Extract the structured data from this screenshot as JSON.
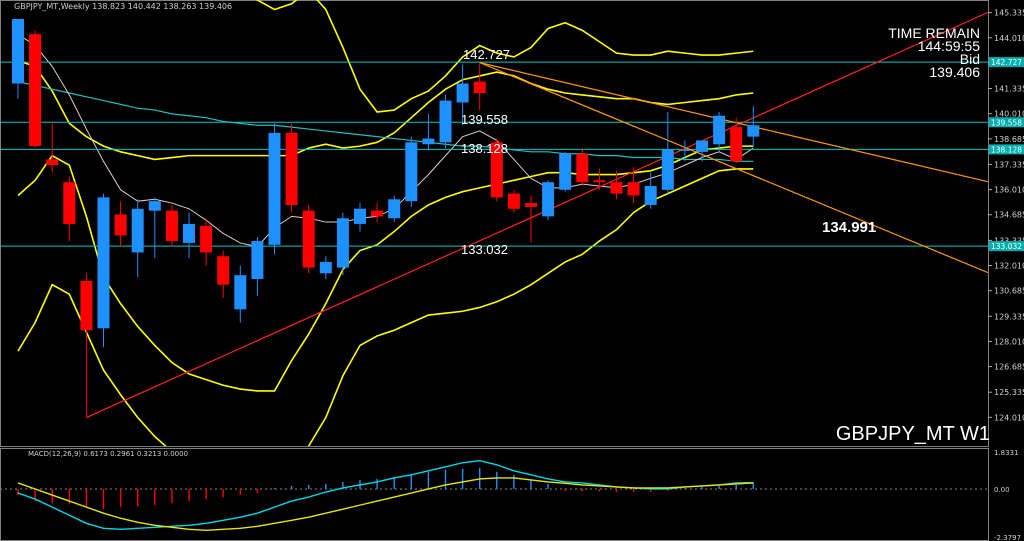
{
  "header": {
    "ohlc_text": "GBPJPY_MT,Weekly  138.823 140.442 138.263 139.406"
  },
  "time_remain": {
    "label": "TIME REMAIN",
    "value": "144:59:55",
    "bid_label": "Bid",
    "bid_value": "139.406"
  },
  "symbol_label": "GBPJPY_MT W1",
  "center_value": "134.991",
  "macd_header": "MACD(12,26,9) 0.6173 0.2961 0.3213 0.0000",
  "colors": {
    "bull": "#1e90ff",
    "bear": "#ff0000",
    "hline": "#00c8c8",
    "band": "#ffff00",
    "trend_up": "#ff2020",
    "trend_down": "#ff9900",
    "ma_white": "#e6c8c8",
    "macd_signal": "#00d8e8",
    "macd_main": "#e6e600",
    "tag_bg": "#00b0b0"
  },
  "chart_data": [
    {
      "type": "candlestick",
      "title": "GBPJPY_MT,Weekly",
      "ylim": [
        122.5,
        146.0
      ],
      "yticks": [
        "145.335",
        "144.010",
        "142.685",
        "141.335",
        "140.010",
        "138.685",
        "137.335",
        "136.010",
        "134.685",
        "133.335",
        "132.010",
        "130.685",
        "129.335",
        "128.010",
        "126.685",
        "125.335",
        "124.010"
      ],
      "candles": [
        {
          "o": 141.6,
          "h": 145.0,
          "l": 140.8,
          "c": 145.0
        },
        {
          "o": 144.2,
          "h": 144.4,
          "l": 138.2,
          "c": 138.3
        },
        {
          "o": 137.6,
          "h": 139.5,
          "l": 136.9,
          "c": 137.3
        },
        {
          "o": 136.4,
          "h": 136.7,
          "l": 133.3,
          "c": 134.2
        },
        {
          "o": 131.2,
          "h": 131.6,
          "l": 124.0,
          "c": 128.6
        },
        {
          "o": 128.7,
          "h": 135.8,
          "l": 127.7,
          "c": 135.6
        },
        {
          "o": 134.7,
          "h": 135.4,
          "l": 133.0,
          "c": 133.6
        },
        {
          "o": 132.7,
          "h": 135.5,
          "l": 131.4,
          "c": 135.0
        },
        {
          "o": 134.9,
          "h": 135.6,
          "l": 132.4,
          "c": 135.4
        },
        {
          "o": 134.9,
          "h": 135.2,
          "l": 133.0,
          "c": 133.3
        },
        {
          "o": 133.2,
          "h": 134.8,
          "l": 132.4,
          "c": 134.2
        },
        {
          "o": 134.1,
          "h": 134.4,
          "l": 132.0,
          "c": 132.7
        },
        {
          "o": 132.5,
          "h": 132.8,
          "l": 130.3,
          "c": 131.0
        },
        {
          "o": 129.7,
          "h": 132.0,
          "l": 129.0,
          "c": 131.5
        },
        {
          "o": 131.3,
          "h": 133.5,
          "l": 130.4,
          "c": 133.3
        },
        {
          "o": 133.1,
          "h": 139.5,
          "l": 132.6,
          "c": 139.0
        },
        {
          "o": 139.0,
          "h": 139.5,
          "l": 134.8,
          "c": 135.2
        },
        {
          "o": 134.9,
          "h": 135.2,
          "l": 131.6,
          "c": 131.9
        },
        {
          "o": 131.6,
          "h": 132.5,
          "l": 131.3,
          "c": 132.2
        },
        {
          "o": 131.9,
          "h": 134.8,
          "l": 131.5,
          "c": 134.5
        },
        {
          "o": 134.2,
          "h": 135.3,
          "l": 133.8,
          "c": 135.0
        },
        {
          "o": 134.9,
          "h": 135.3,
          "l": 134.3,
          "c": 134.6
        },
        {
          "o": 134.5,
          "h": 135.7,
          "l": 134.3,
          "c": 135.5
        },
        {
          "o": 135.4,
          "h": 138.8,
          "l": 135.1,
          "c": 138.5
        },
        {
          "o": 138.4,
          "h": 140.0,
          "l": 138.1,
          "c": 138.7
        },
        {
          "o": 138.5,
          "h": 141.0,
          "l": 138.2,
          "c": 140.7
        },
        {
          "o": 140.6,
          "h": 142.6,
          "l": 139.4,
          "c": 141.6
        },
        {
          "o": 141.7,
          "h": 142.7,
          "l": 140.2,
          "c": 141.1
        },
        {
          "o": 138.5,
          "h": 138.7,
          "l": 135.4,
          "c": 135.6
        },
        {
          "o": 135.8,
          "h": 136.0,
          "l": 134.8,
          "c": 135.0
        },
        {
          "o": 135.3,
          "h": 135.7,
          "l": 133.2,
          "c": 135.1
        },
        {
          "o": 134.6,
          "h": 136.5,
          "l": 134.4,
          "c": 136.4
        },
        {
          "o": 136.0,
          "h": 138.0,
          "l": 135.9,
          "c": 137.9
        },
        {
          "o": 137.9,
          "h": 138.2,
          "l": 136.2,
          "c": 136.4
        },
        {
          "o": 136.5,
          "h": 137.1,
          "l": 136.0,
          "c": 136.4
        },
        {
          "o": 136.4,
          "h": 137.0,
          "l": 135.5,
          "c": 135.8
        },
        {
          "o": 136.4,
          "h": 137.2,
          "l": 135.3,
          "c": 135.7
        },
        {
          "o": 135.2,
          "h": 136.9,
          "l": 135.0,
          "c": 136.2
        },
        {
          "o": 136.0,
          "h": 140.1,
          "l": 135.8,
          "c": 138.1
        },
        {
          "o": 138.1,
          "h": 138.6,
          "l": 137.5,
          "c": 138.1
        },
        {
          "o": 138.0,
          "h": 138.6,
          "l": 137.5,
          "c": 138.6
        },
        {
          "o": 138.4,
          "h": 140.1,
          "l": 138.0,
          "c": 139.9
        },
        {
          "o": 139.3,
          "h": 139.8,
          "l": 137.4,
          "c": 137.5
        },
        {
          "o": 138.8,
          "h": 140.4,
          "l": 138.3,
          "c": 139.4
        }
      ],
      "hlines": [
        {
          "value": 142.727,
          "label": "142.727"
        },
        {
          "value": 139.558,
          "label": "139.558"
        },
        {
          "value": 138.128,
          "label": "138.128"
        },
        {
          "value": 133.032,
          "label": "133.032"
        }
      ],
      "trendlines": [
        {
          "name": "support",
          "points": [
            [
              4,
              124.0
            ],
            [
              45,
              140.6
            ]
          ]
        },
        {
          "name": "resistance",
          "points": [
            [
              27,
              142.7
            ],
            [
              45,
              136.0
            ]
          ]
        },
        {
          "name": "resistance-2",
          "points": [
            [
              27,
              142.7
            ],
            [
              45,
              138.9
            ]
          ]
        }
      ],
      "bands": {
        "outer_upper": [
          168,
          163,
          157,
          153,
          150,
          149,
          149,
          149,
          149,
          148.5,
          148,
          147.5,
          147,
          146.5,
          146,
          145.5,
          145.8,
          146.5,
          145.5,
          143.5,
          141.3,
          140.1,
          140.2,
          140.8,
          141.2,
          142.0,
          143.0,
          143.6,
          143.2,
          143.0,
          143.5,
          144.5,
          144.8,
          144.4,
          143.8,
          143.2,
          143.1,
          143.1,
          143.3,
          143.2,
          143.1,
          143.1,
          143.2,
          143.3
        ],
        "inner_upper": [
          142.8,
          142.5,
          141.2,
          139.5,
          138.8,
          138.3,
          138.0,
          137.8,
          137.6,
          137.7,
          137.8,
          137.8,
          137.8,
          137.8,
          137.8,
          137.8,
          137.8,
          138.2,
          138.4,
          138.2,
          138.3,
          138.5,
          139.0,
          139.8,
          140.6,
          141.3,
          141.8,
          142.0,
          142.2,
          142.0,
          141.6,
          141.3,
          141.1,
          141.0,
          140.9,
          140.8,
          140.8,
          140.6,
          140.5,
          140.6,
          140.7,
          140.8,
          141.0,
          141.1
        ],
        "inner_lower": [
          135.7,
          136.5,
          137.8,
          137.3,
          134.6,
          131.4,
          130.0,
          128.8,
          127.8,
          126.9,
          126.3,
          126.0,
          125.7,
          125.5,
          125.4,
          125.4,
          127.0,
          128.4,
          130.0,
          131.8,
          132.8,
          133.1,
          133.8,
          134.6,
          135.2,
          135.6,
          135.9,
          136.1,
          136.3,
          136.5,
          136.7,
          136.9,
          136.9,
          136.8,
          136.8,
          136.8,
          136.9,
          137.0,
          137.3,
          137.7,
          138.1,
          138.2,
          138.3,
          138.3
        ],
        "outer_lower": [
          127.5,
          129.0,
          131.0,
          130.5,
          128.5,
          126.5,
          125.2,
          124.0,
          123.0,
          122.2,
          121.5,
          121.0,
          120.5,
          120.2,
          120.0,
          119.9,
          121.0,
          122.5,
          124.0,
          126.2,
          127.8,
          128.3,
          128.6,
          129.0,
          129.4,
          129.5,
          129.6,
          129.8,
          130.1,
          130.5,
          131.0,
          131.6,
          132.2,
          132.6,
          133.3,
          133.9,
          134.8,
          135.4,
          135.8,
          136.2,
          136.6,
          137.0,
          137.1,
          137.1
        ]
      },
      "ma_white": [
        144.2,
        143.6,
        142.5,
        141.0,
        139.2,
        137.5,
        136.0,
        135.4,
        135.5,
        135.3,
        135.0,
        134.4,
        133.7,
        133.2,
        133.0,
        134.0,
        134.6,
        134.5,
        134.3,
        134.3,
        134.5,
        134.6,
        135.0,
        135.9,
        136.8,
        137.8,
        138.8,
        139.1,
        138.6,
        137.6,
        136.6,
        136.1,
        136.1,
        136.3,
        136.2,
        136.1,
        136.3,
        136.6,
        136.9,
        137.3,
        137.7,
        138.0,
        137.6,
        138.2
      ],
      "ma_cyan": [
        141.7,
        141.5,
        141.3,
        141.1,
        140.9,
        140.7,
        140.5,
        140.3,
        140.2,
        140.0,
        139.9,
        139.8,
        139.6,
        139.5,
        139.4,
        139.4,
        139.3,
        139.2,
        139.1,
        139.0,
        138.9,
        138.8,
        138.7,
        138.6,
        138.5,
        138.4,
        138.3,
        138.3,
        138.2,
        138.1,
        138.0,
        138.0,
        137.9,
        137.9,
        137.8,
        137.8,
        137.7,
        137.7,
        137.7,
        137.6,
        137.6,
        137.6,
        137.5,
        137.5
      ]
    },
    {
      "type": "bar",
      "title": "MACD(12,26,9)",
      "values": [
        0.6173,
        0.2961,
        0.3213,
        0.0
      ],
      "yticks": [
        "1.8331",
        "0.00",
        "-2.3797"
      ],
      "ylim": [
        -2.3797,
        1.8331
      ],
      "histogram": [
        -0.3,
        -0.6,
        -0.7,
        -0.75,
        -0.9,
        -1.0,
        -0.9,
        -0.85,
        -0.8,
        -0.7,
        -0.6,
        -0.5,
        -0.4,
        -0.3,
        -0.2,
        0.05,
        0.15,
        0.2,
        0.25,
        0.35,
        0.45,
        0.5,
        0.6,
        0.75,
        0.85,
        0.95,
        1.0,
        1.05,
        0.85,
        0.7,
        0.45,
        0.25,
        -0.1,
        -0.1,
        -0.12,
        -0.15,
        -0.15,
        -0.15,
        -0.1,
        0.05,
        0.1,
        0.15,
        0.2,
        0.32
      ],
      "signal": [
        -0.2,
        -0.5,
        -0.9,
        -1.3,
        -1.7,
        -1.95,
        -2.0,
        -1.95,
        -1.9,
        -1.85,
        -1.8,
        -1.7,
        -1.55,
        -1.4,
        -1.2,
        -0.9,
        -0.6,
        -0.4,
        -0.15,
        0.05,
        0.2,
        0.35,
        0.55,
        0.7,
        0.9,
        1.1,
        1.3,
        1.4,
        1.2,
        0.9,
        0.7,
        0.5,
        0.35,
        0.3,
        0.2,
        0.1,
        0.05,
        0.0,
        0.0,
        0.1,
        0.15,
        0.2,
        0.3,
        0.32
      ],
      "main": [
        0.3,
        0.0,
        -0.3,
        -0.6,
        -0.9,
        -1.2,
        -1.45,
        -1.65,
        -1.8,
        -1.9,
        -2.0,
        -2.05,
        -2.0,
        -1.95,
        -1.85,
        -1.7,
        -1.55,
        -1.4,
        -1.2,
        -1.0,
        -0.8,
        -0.6,
        -0.4,
        -0.2,
        0.0,
        0.2,
        0.35,
        0.5,
        0.55,
        0.55,
        0.45,
        0.35,
        0.28,
        0.2,
        0.15,
        0.1,
        0.05,
        0.05,
        0.05,
        0.1,
        0.15,
        0.2,
        0.25,
        0.3
      ]
    }
  ]
}
